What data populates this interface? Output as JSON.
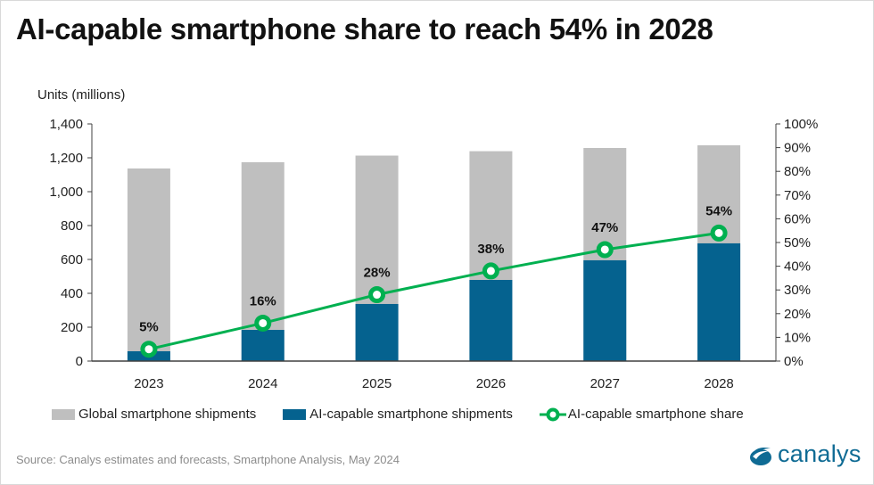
{
  "chart_data": {
    "type": "bar",
    "title": "AI-capable smartphone share to reach 54% in 2028",
    "ylabel": "Units (millions)",
    "ylim": [
      0,
      1400
    ],
    "y_ticks": [
      "0",
      "200",
      "400",
      "600",
      "800",
      "1,000",
      "1,200",
      "1,400"
    ],
    "y2lim": [
      0,
      100
    ],
    "y2_ticks": [
      "0%",
      "10%",
      "20%",
      "30%",
      "40%",
      "50%",
      "60%",
      "70%",
      "80%",
      "90%",
      "100%"
    ],
    "categories": [
      "2023",
      "2024",
      "2025",
      "2026",
      "2027",
      "2028"
    ],
    "series": [
      {
        "name": "Global smartphone shipments",
        "type": "bar",
        "color": "#bfbfbf",
        "values": [
          1137,
          1174,
          1213,
          1239,
          1258,
          1274
        ]
      },
      {
        "name": "AI-capable smartphone shipments",
        "type": "bar",
        "color": "#05628f",
        "values": [
          58,
          184,
          337,
          479,
          595,
          695
        ]
      },
      {
        "name": "AI-capable smartphone share",
        "type": "line",
        "axis": "right",
        "color": "#00b050",
        "values": [
          5,
          16,
          28,
          38,
          47,
          54
        ],
        "labels": [
          "5%",
          "16%",
          "28%",
          "38%",
          "47%",
          "54%"
        ]
      }
    ],
    "legend": "bottom",
    "grid": false
  },
  "source": "Source:  Canalys estimates and forecasts, Smartphone  Analysis, May 2024",
  "logo": "canalys"
}
